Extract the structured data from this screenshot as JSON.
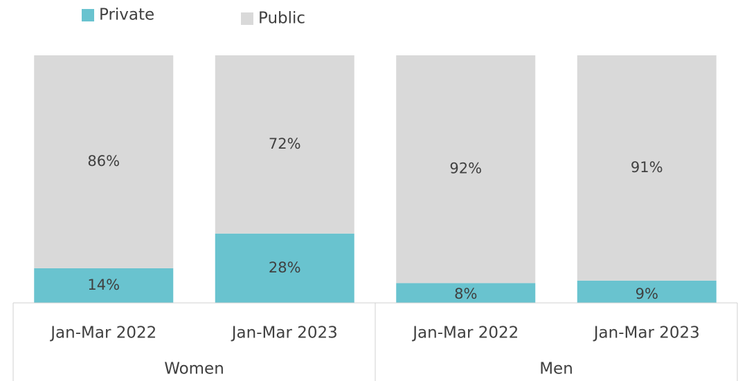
{
  "chart_data": {
    "type": "stacked-bar",
    "categories": [
      "Jan-Mar 2022",
      "Jan-Mar 2023",
      "Jan-Mar 2022",
      "Jan-Mar 2023"
    ],
    "groups": [
      "Women",
      "Men"
    ],
    "series": [
      {
        "name": "Private",
        "color": "#69c3cf",
        "values": [
          14,
          28,
          8,
          9
        ],
        "value_labels": [
          "14%",
          "28%",
          "8%",
          "9%"
        ]
      },
      {
        "name": "Public",
        "color": "#d9d9d9",
        "values": [
          86,
          72,
          92,
          91
        ],
        "value_labels": [
          "86%",
          "72%",
          "92%",
          "91%"
        ]
      }
    ],
    "ylim": [
      0,
      100
    ]
  }
}
